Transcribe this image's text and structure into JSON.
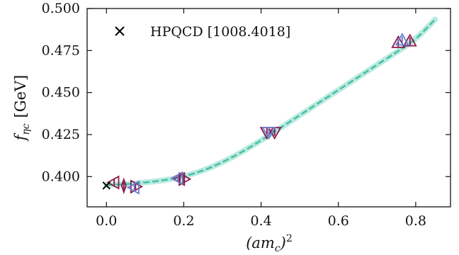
{
  "chart_data": {
    "type": "scatter",
    "xlabel": "(am_c)^2",
    "xlabel_base": "(am",
    "xlabel_sub": "c",
    "xlabel_close": ")",
    "xlabel_sup": "2",
    "ylabel": "f_ηc [GeV]",
    "ylabel_base": "f",
    "ylabel_sub": "ηc",
    "ylabel_unit": "[GeV]",
    "xlim": [
      -0.05,
      0.89
    ],
    "ylim": [
      0.382,
      0.5
    ],
    "xticks": [
      0.0,
      0.2,
      0.4,
      0.6,
      0.8
    ],
    "xtick_labels": [
      "0.0",
      "0.2",
      "0.4",
      "0.6",
      "0.8"
    ],
    "yticks": [
      0.4,
      0.425,
      0.45,
      0.475,
      0.5
    ],
    "ytick_labels": [
      "0.400",
      "0.425",
      "0.450",
      "0.475",
      "0.500"
    ],
    "grid": false,
    "legend_position": "top-left",
    "legend_entries": [
      {
        "label": "HPQCD [1008.4018]",
        "marker": "x",
        "color": "#000000"
      }
    ],
    "reference_points": [
      {
        "x": 0.0,
        "y": 0.3947,
        "marker": "x",
        "color": "#000000"
      }
    ],
    "fit_curve": {
      "color": "#3dbfa3",
      "x": [
        0.0,
        0.05,
        0.1,
        0.15,
        0.2,
        0.25,
        0.3,
        0.35,
        0.4,
        0.45,
        0.5,
        0.55,
        0.6,
        0.65,
        0.7,
        0.75,
        0.8,
        0.85
      ],
      "y": [
        0.395,
        0.3955,
        0.3965,
        0.3978,
        0.4,
        0.4035,
        0.4085,
        0.4145,
        0.4215,
        0.429,
        0.4365,
        0.444,
        0.4515,
        0.459,
        0.4665,
        0.474,
        0.4815,
        0.4935
      ]
    },
    "series": [
      {
        "color": "#8b1a4a",
        "points": [
          {
            "x": 0.02,
            "y": 0.3965,
            "marker": "triangle-left"
          },
          {
            "x": 0.045,
            "y": 0.3945,
            "marker": "thin-diamond"
          },
          {
            "x": 0.075,
            "y": 0.394,
            "marker": "triangle-right"
          },
          {
            "x": 0.19,
            "y": 0.3985,
            "marker": "triangle-left"
          },
          {
            "x": 0.2,
            "y": 0.3985,
            "marker": "triangle-right"
          },
          {
            "x": 0.415,
            "y": 0.4265,
            "marker": "triangle-down"
          },
          {
            "x": 0.435,
            "y": 0.4265,
            "marker": "triangle-down"
          },
          {
            "x": 0.755,
            "y": 0.4795,
            "marker": "triangle-up"
          },
          {
            "x": 0.785,
            "y": 0.4805,
            "marker": "triangle-up"
          }
        ]
      },
      {
        "color": "#6a7fd0",
        "points": [
          {
            "x": 0.072,
            "y": 0.3935,
            "marker": "triangle-left"
          },
          {
            "x": 0.185,
            "y": 0.399,
            "marker": "triangle-left"
          },
          {
            "x": 0.42,
            "y": 0.4265,
            "marker": "triangle-down"
          },
          {
            "x": 0.765,
            "y": 0.481,
            "marker": "triangle-up"
          }
        ]
      }
    ]
  }
}
